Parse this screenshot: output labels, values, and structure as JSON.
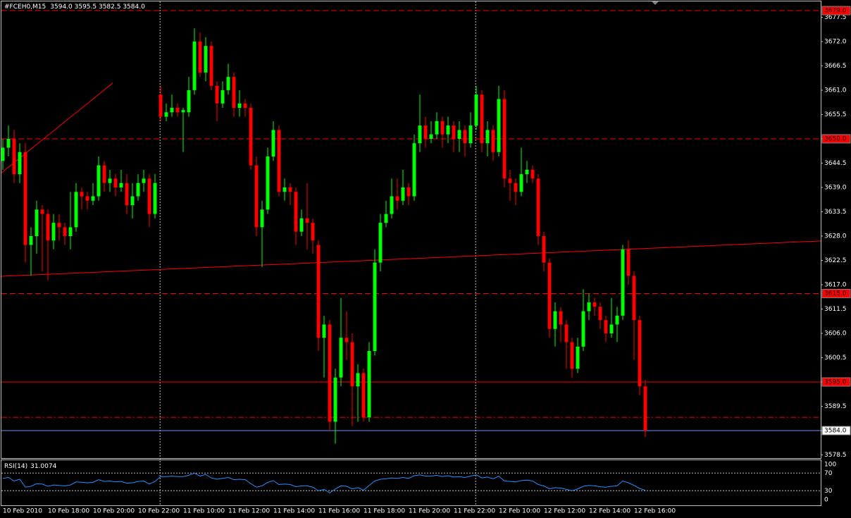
{
  "chart_data": {
    "type": "candlestick",
    "title": "#FCEH0,M15",
    "subtitle": "3594.0 3595.5 3582.5 3584.0",
    "categories": [
      "10 Feb 2010",
      null,
      null,
      null,
      null,
      null,
      null,
      null,
      "10 Feb 18:00",
      null,
      null,
      null,
      null,
      null,
      null,
      null,
      "10 Feb 20:00",
      null,
      null,
      null,
      null,
      null,
      null,
      null,
      "10 Feb 22:00",
      null,
      null,
      null,
      null,
      null,
      null,
      null,
      "11 Feb 10:00",
      null,
      null,
      null,
      null,
      null,
      null,
      null,
      "11 Feb 12:00",
      null,
      null,
      null,
      null,
      null,
      null,
      null,
      "11 Feb 14:00",
      null,
      null,
      null,
      null,
      null,
      null,
      null,
      "11 Feb 16:00",
      null,
      null,
      null,
      null,
      null,
      null,
      null,
      "11 Feb 18:00",
      null,
      null,
      null,
      null,
      null,
      null,
      null,
      "11 Feb 20:00",
      null,
      null,
      null,
      null,
      null,
      null,
      null,
      "11 Feb 22:00",
      null,
      null,
      null,
      null,
      null,
      null,
      null,
      "12 Feb 10:00",
      null,
      null,
      null,
      null,
      null,
      null,
      null,
      "12 Feb 12:00",
      null,
      null,
      null,
      null,
      null,
      null,
      null,
      "12 Feb 14:00",
      null,
      null,
      null,
      null,
      null,
      null,
      null,
      "12 Feb 16:00",
      null,
      null
    ],
    "open": [
      3645,
      3648,
      3650,
      3642,
      3647,
      3626,
      3628,
      3634,
      3633,
      3627,
      3631,
      3630,
      3628,
      3630,
      3638,
      3637,
      3636,
      3637,
      3644,
      3640,
      3641,
      3639,
      3640,
      3635,
      3637,
      3640,
      3641,
      3633,
      3660,
      3655,
      3656,
      3657,
      3656,
      3656,
      3661,
      3672,
      3665,
      3671,
      3662,
      3658,
      3661,
      3664,
      3657,
      3658,
      3657,
      3644,
      3630,
      3634,
      3646,
      3652,
      3638,
      3639,
      3638,
      3629,
      3632,
      3631,
      3626,
      3605,
      3608,
      3586,
      3596,
      3605,
      3604,
      3594,
      3597,
      3587,
      3602,
      3622,
      3631,
      3633,
      3637,
      3636,
      3639,
      3637,
      3649,
      3653,
      3650,
      3651,
      3654,
      3651,
      3653,
      3650,
      3652,
      3649,
      3653,
      3660,
      3649,
      3652,
      3647,
      3659,
      3641,
      3640,
      3638,
      3642,
      3643,
      3641,
      3628,
      3622,
      3607,
      3611,
      3608,
      3604,
      3598,
      3603,
      3611,
      3613,
      3612,
      3609,
      3606,
      3608,
      3610,
      3625,
      3619,
      3609,
      3594
    ],
    "high": [
      3650,
      3653,
      3652,
      3649,
      3649,
      3630,
      3636,
      3635,
      3634,
      3633,
      3633,
      3631,
      3638,
      3640,
      3639,
      3638,
      3640,
      3646,
      3645,
      3643,
      3642,
      3643,
      3642,
      3640,
      3642,
      3643,
      3642,
      3642,
      3662,
      3658,
      3660,
      3658,
      3657,
      3664,
      3675,
      3674,
      3673,
      3672,
      3663,
      3663,
      3667,
      3665,
      3661,
      3659,
      3658,
      3646,
      3636,
      3648,
      3654,
      3653,
      3641,
      3640,
      3639,
      3634,
      3640,
      3632,
      3627,
      3610,
      3609,
      3598,
      3614,
      3611,
      3606,
      3599,
      3598,
      3604,
      3625,
      3633,
      3636,
      3641,
      3641,
      3643,
      3640,
      3651,
      3660,
      3655,
      3654,
      3656,
      3655,
      3655,
      3654,
      3654,
      3653,
      3656,
      3662,
      3661,
      3654,
      3653,
      3662,
      3661,
      3643,
      3641,
      3648,
      3645,
      3644,
      3642,
      3629,
      3623,
      3613,
      3612,
      3609,
      3605,
      3605,
      3616,
      3615,
      3614,
      3613,
      3610,
      3614,
      3612,
      3626,
      3627,
      3620,
      3610,
      3595.5
    ],
    "low": [
      3643,
      3646,
      3640,
      3640,
      3622,
      3619,
      3624,
      3620,
      3618,
      3625,
      3627,
      3626,
      3625,
      3629,
      3634,
      3634,
      3635,
      3636,
      3638,
      3638,
      3637,
      3638,
      3633,
      3632,
      3636,
      3638,
      3630,
      3632,
      3654,
      3654,
      3655,
      3655,
      3647,
      3655,
      3660,
      3664,
      3663,
      3661,
      3654,
      3657,
      3660,
      3655,
      3655,
      3655,
      3643,
      3628,
      3621,
      3633,
      3645,
      3637,
      3636,
      3635,
      3626,
      3628,
      3625,
      3624,
      3602,
      3596,
      3584,
      3581,
      3594,
      3600,
      3585,
      3586,
      3586,
      3586,
      3601,
      3620,
      3630,
      3632,
      3634,
      3635,
      3635,
      3636,
      3647,
      3648,
      3649,
      3650,
      3648,
      3649,
      3647,
      3647,
      3646,
      3648,
      3652,
      3647,
      3646,
      3645,
      3646,
      3639,
      3636,
      3635,
      3637,
      3640,
      3640,
      3626,
      3620,
      3605,
      3603,
      3604,
      3598,
      3596,
      3597,
      3602,
      3609,
      3610,
      3607,
      3604,
      3605,
      3604,
      3609,
      3617,
      3600,
      3592,
      3582.5
    ],
    "close": [
      3648,
      3650,
      3642,
      3647,
      3626,
      3628,
      3634,
      3633,
      3627,
      3631,
      3630,
      3628,
      3630,
      3638,
      3637,
      3636,
      3637,
      3644,
      3640,
      3641,
      3639,
      3640,
      3635,
      3637,
      3640,
      3641,
      3633,
      3640,
      3655,
      3656,
      3657,
      3656,
      3656.5,
      3661,
      3672,
      3665,
      3671,
      3662,
      3658,
      3661,
      3664,
      3657,
      3658,
      3657,
      3644,
      3630,
      3634,
      3646,
      3652,
      3638,
      3639,
      3638,
      3629,
      3632,
      3631,
      3627,
      3605,
      3608,
      3586,
      3596,
      3605,
      3604,
      3594,
      3597,
      3587,
      3602,
      3622,
      3631,
      3633,
      3637,
      3636,
      3639,
      3637,
      3649,
      3653,
      3650,
      3651,
      3654,
      3651,
      3653,
      3650,
      3652,
      3649,
      3653,
      3660,
      3649,
      3652,
      3647,
      3659,
      3641,
      3640,
      3638,
      3642,
      3643,
      3641,
      3628,
      3622,
      3607,
      3611,
      3608,
      3604,
      3598,
      3603,
      3611,
      3613,
      3612,
      3609,
      3606,
      3608,
      3610,
      3625,
      3619,
      3609,
      3594,
      3584
    ],
    "up_color": "#00ff00",
    "down_color": "#ff0000",
    "xlim": [
      -0.25,
      145.125
    ],
    "ylim": [
      3577.78,
      3681.08
    ],
    "yticks": [
      3677.5,
      {
        "value": 3672,
        "label": "3672.0"
      },
      3666.5,
      {
        "value": 3661,
        "label": "3661.0"
      },
      3655.5,
      {
        "value": 3650,
        "label": "3650.0"
      },
      3644.5,
      {
        "value": 3639,
        "label": "3639.0"
      },
      3633.5,
      {
        "value": 3628,
        "label": "3628.0"
      },
      3622.5,
      {
        "value": 3617,
        "label": "3617.0"
      },
      3611.5,
      {
        "value": 3606,
        "label": "3606.0"
      },
      3600.5,
      {
        "value": 3595,
        "label": "3595.0"
      },
      3589.5,
      {
        "value": 3584,
        "label": "3584.0"
      },
      3578.5
    ],
    "levels": [
      {
        "value": 3679,
        "label": "3679.0",
        "style": "dashed",
        "color": "#ff0000",
        "label_fill": "#ff0000"
      },
      {
        "value": 3650,
        "label": "3650.0",
        "style": "dashed",
        "color": "#ff0000",
        "label_fill": "#ff0000"
      },
      {
        "value": 3615,
        "label": "3615.0",
        "style": "dashed",
        "color": "#ff0000",
        "label_fill": "#ff0000"
      },
      {
        "value": 3595,
        "label": "3595.0",
        "style": "solid",
        "color": "#ff0000",
        "label_fill": "#ff0000"
      },
      {
        "value": 3587,
        "style": "dashdot",
        "color": "#ff0000"
      },
      {
        "value": 3584,
        "label": "3584.0",
        "style": "solid",
        "color": "#6495ed",
        "label_fill": "#ffffff"
      }
    ],
    "trendlines": [
      {
        "x": [
          -0.25,
          145.125
        ],
        "y": [
          3618.9,
          3626.9
        ],
        "color": "#ff0000"
      },
      {
        "x": [
          -0.25,
          19.5
        ],
        "y": [
          3642.3,
          3662.6
        ],
        "color": "#ff0000"
      }
    ],
    "vlines": [
      27.9,
      83.9
    ],
    "indicator": {
      "name": "RSI(14)",
      "color": "#1e90ff",
      "ylim": [
        0,
        100
      ],
      "yticks": [
        100,
        70,
        30,
        0
      ],
      "levels": [
        70,
        30
      ],
      "values": [
        58,
        60,
        52,
        56,
        38,
        40,
        46,
        45,
        40,
        43,
        42,
        41,
        43,
        50,
        49,
        48,
        49,
        55,
        51,
        52,
        50,
        51,
        47,
        48,
        51,
        52,
        45,
        51,
        62,
        62,
        63,
        62,
        62,
        65,
        70,
        63,
        67,
        59,
        56,
        58,
        60,
        55,
        56,
        55,
        46,
        38,
        41,
        49,
        53,
        44,
        45,
        44,
        39,
        41,
        41,
        38,
        30,
        33,
        25,
        34,
        41,
        40,
        34,
        37,
        31,
        42,
        52,
        56,
        57,
        59,
        58,
        60,
        58,
        64,
        66,
        63,
        63,
        65,
        62,
        64,
        61,
        62,
        60,
        63,
        66,
        59,
        61,
        57,
        63,
        52,
        51,
        50,
        53,
        54,
        52,
        44,
        41,
        34,
        37,
        36,
        33,
        30,
        34,
        40,
        42,
        41,
        39,
        38,
        40,
        41,
        52,
        48,
        42,
        35,
        31.0074
      ]
    }
  }
}
